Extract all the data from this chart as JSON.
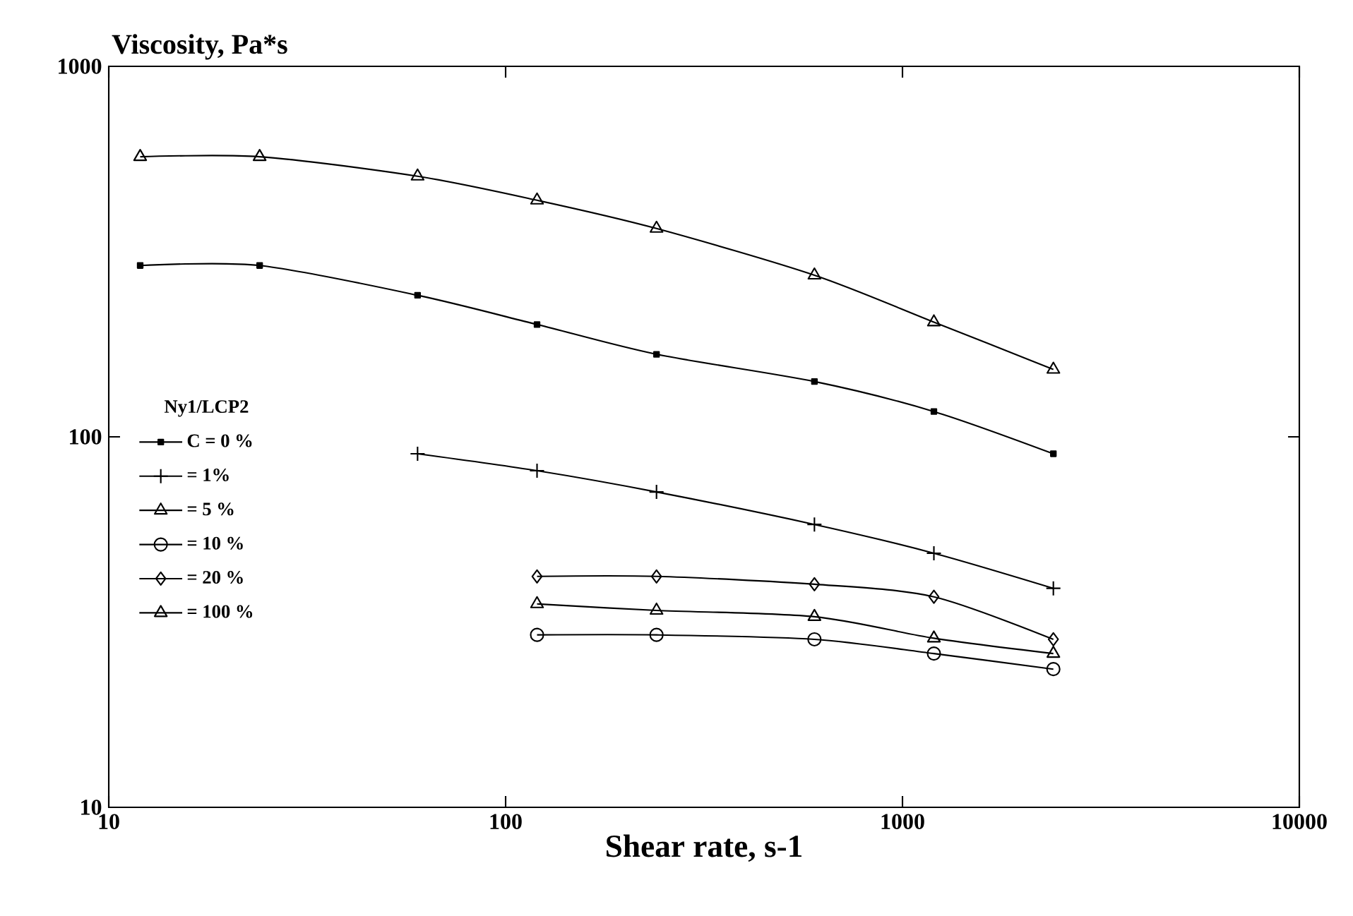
{
  "chart_data": {
    "type": "line",
    "ylabel": "Viscosity, Pa*s",
    "xlabel": "Shear rate, s-1",
    "legend_title": "Ny1/LCP2",
    "legend": "left",
    "log": "xy",
    "xlim": [
      10,
      10000
    ],
    "ylim": [
      10,
      1000
    ],
    "xticks": [
      10,
      100,
      1000,
      10000
    ],
    "yticks": [
      10,
      100,
      1000
    ],
    "line_style": "solid",
    "series": [
      {
        "name": "C = 0 %",
        "color": "#000000",
        "marker": "square",
        "x": [
          12,
          24,
          60,
          120,
          240,
          600,
          1200,
          2400
        ],
        "values": [
          290,
          290,
          241,
          201,
          167,
          141,
          117,
          90
        ]
      },
      {
        "name": "= 1%",
        "color": "#000000",
        "marker": "cross",
        "x": [
          60,
          120,
          240,
          600,
          1200,
          2400
        ],
        "values": [
          90,
          81,
          71,
          58,
          48.5,
          39
        ]
      },
      {
        "name": "= 5 %",
        "color": "#000000",
        "marker": "triangle",
        "x": [
          120,
          240,
          600,
          1200,
          2400
        ],
        "values": [
          35.4,
          34,
          32.7,
          28.6,
          26
        ]
      },
      {
        "name": "= 10 %",
        "color": "#000000",
        "marker": "circle",
        "x": [
          120,
          240,
          600,
          1200,
          2400
        ],
        "values": [
          29.2,
          29.2,
          28.4,
          26,
          23.6
        ]
      },
      {
        "name": "= 20 %",
        "color": "#000000",
        "marker": "diamond",
        "x": [
          120,
          240,
          600,
          1200,
          2400
        ],
        "values": [
          42,
          42,
          40,
          37,
          28.4
        ]
      },
      {
        "name": "= 100 %",
        "color": "#000000",
        "marker": "triangle",
        "x": [
          12,
          24,
          60,
          120,
          240,
          600,
          1200,
          2400
        ],
        "values": [
          570,
          570,
          505,
          435,
          365,
          273,
          204,
          152
        ]
      }
    ]
  }
}
